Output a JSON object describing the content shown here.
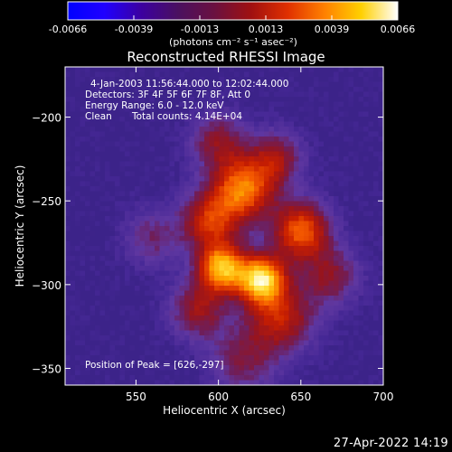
{
  "colors": {
    "background": "#000000",
    "text": "#ffffff",
    "axis": "#ffffff"
  },
  "colorbar": {
    "ticks": [
      "-0.0066",
      "-0.0039",
      "-0.0013",
      "0.0013",
      "0.0039",
      "0.0066"
    ],
    "unit_label": "(photons cm⁻² s⁻¹ asec⁻²)",
    "gradient": [
      "#0000ff",
      "#2000ff",
      "#3c00a0",
      "#4a1060",
      "#6a1040",
      "#a01010",
      "#e03000",
      "#ff8000",
      "#ffd000",
      "#ffffff"
    ]
  },
  "chart_data": {
    "type": "heatmap",
    "title": "Reconstructed RHESSI Image",
    "xlabel": "Heliocentric X (arcsec)",
    "ylabel": "Heliocentric Y (arcsec)",
    "xlim": [
      507,
      700
    ],
    "ylim": [
      -360,
      -170
    ],
    "x_ticks": [
      550,
      600,
      650,
      700
    ],
    "y_ticks": [
      -200,
      -250,
      -300,
      -350
    ],
    "x_tick_labels": [
      "550",
      "600",
      "650",
      "700"
    ],
    "y_tick_labels": [
      "−200",
      "−250",
      "−300",
      "−350"
    ],
    "annotations": {
      "time_range": "4-Jan-2003 11:56:44.000 to 12:02:44.000",
      "detectors": "Detectors: 3F 4F 5F 6F 7F 8F, Att 0",
      "energy": "Energy Range: 6.0 - 12.0 keV",
      "clean": "Clean",
      "counts": "Total counts: 4.14E+04",
      "peak": "Position of Peak = [626,-297]"
    },
    "peak_position": [
      626,
      -297
    ],
    "sources": [
      {
        "x": 626,
        "y": -297,
        "amp": 1.0,
        "sigma": 10
      },
      {
        "x": 602,
        "y": -290,
        "amp": 0.9,
        "sigma": 10
      },
      {
        "x": 615,
        "y": -243,
        "amp": 0.75,
        "sigma": 13
      },
      {
        "x": 650,
        "y": -268,
        "amp": 0.7,
        "sigma": 12
      },
      {
        "x": 595,
        "y": -262,
        "amp": 0.55,
        "sigma": 12
      },
      {
        "x": 638,
        "y": -320,
        "amp": 0.5,
        "sigma": 14
      },
      {
        "x": 588,
        "y": -315,
        "amp": 0.4,
        "sigma": 12
      },
      {
        "x": 600,
        "y": -215,
        "amp": 0.35,
        "sigma": 12
      },
      {
        "x": 635,
        "y": -225,
        "amp": 0.4,
        "sigma": 11
      },
      {
        "x": 668,
        "y": -295,
        "amp": 0.35,
        "sigma": 12
      },
      {
        "x": 615,
        "y": -345,
        "amp": 0.3,
        "sigma": 14
      },
      {
        "x": 560,
        "y": -272,
        "amp": 0.25,
        "sigma": 12
      }
    ]
  },
  "footer": {
    "timestamp": "27-Apr-2022 14:19"
  }
}
